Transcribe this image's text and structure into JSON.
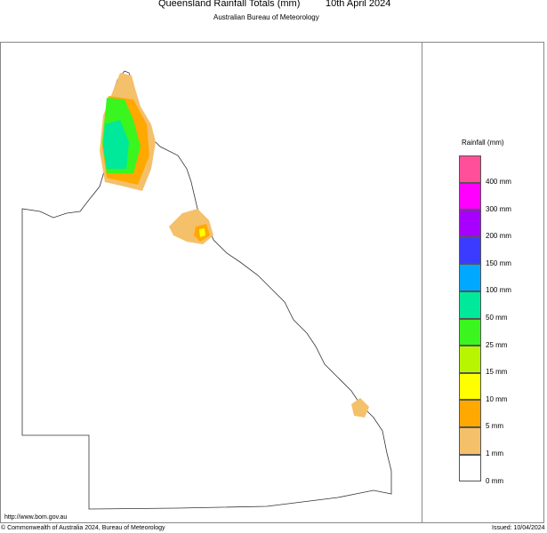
{
  "header": {
    "title": "Queensland Rainfall Totals (mm)",
    "date": "10th April 2024",
    "subtitle": "Australian Bureau of Meteorology"
  },
  "legend": {
    "title": "Rainfall (mm)",
    "bands": [
      {
        "color": "#ff4f9a",
        "label": "400 mm"
      },
      {
        "color": "#ff00ff",
        "label": "300 mm"
      },
      {
        "color": "#a800ff",
        "label": "200 mm"
      },
      {
        "color": "#3b3bff",
        "label": "150 mm"
      },
      {
        "color": "#00a8ff",
        "label": "100 mm"
      },
      {
        "color": "#00e89a",
        "label": "50 mm"
      },
      {
        "color": "#3af51e",
        "label": "25 mm"
      },
      {
        "color": "#b8f500",
        "label": "15 mm"
      },
      {
        "color": "#ffff00",
        "label": "10 mm"
      },
      {
        "color": "#ffa800",
        "label": "5 mm"
      },
      {
        "color": "#f5c06a",
        "label": "1 mm"
      },
      {
        "color": "#ffffff",
        "label": "0 mm"
      }
    ]
  },
  "footer": {
    "url": "http://www.bom.gov.au",
    "copyright": "© Commonwealth of Australia 2024, Bureau of Meteorology",
    "issued": "Issued: 10/04/2024"
  }
}
